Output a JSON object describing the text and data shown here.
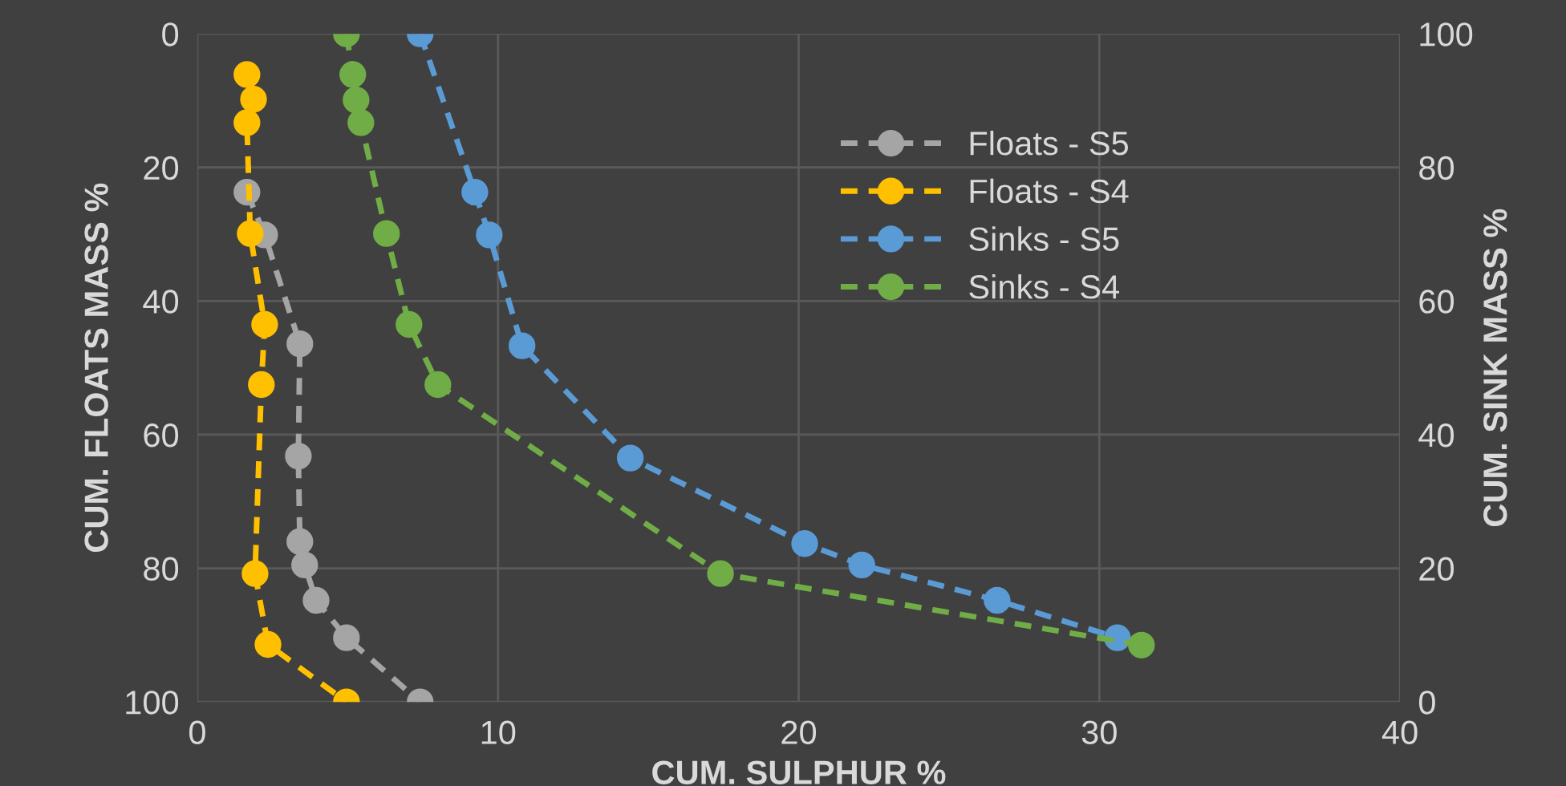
{
  "chart_data": {
    "type": "line",
    "xlabel": "CUM. SULPHUR %",
    "ylabel": "CUM. FLOATS MASS %",
    "y2label": "CUM. SINK MASS %",
    "xlim": [
      0,
      40
    ],
    "xticks": [
      0,
      10,
      20,
      30,
      40
    ],
    "ylim": [
      100,
      0
    ],
    "yticks": [
      0,
      20,
      40,
      60,
      80,
      100
    ],
    "y2lim": [
      0,
      100
    ],
    "y2ticks": [
      0,
      20,
      40,
      60,
      80,
      100
    ],
    "grid": true,
    "legend": "top right",
    "marker": "circle",
    "line_style": "dashed",
    "series": [
      {
        "name": "Floats - S5",
        "color": "#a5a5a5",
        "x": [
          1.65,
          2.24,
          3.41,
          3.36,
          3.41,
          3.57,
          3.95,
          4.96,
          7.41
        ],
        "values": [
          23.7,
          30.1,
          46.4,
          63.2,
          76,
          79.5,
          84.8,
          90.4,
          100
        ]
      },
      {
        "name": "Floats - S4",
        "color": "#ffc000",
        "x": [
          1.65,
          1.87,
          1.65,
          1.76,
          2.24,
          2.13,
          1.92,
          2.35,
          4.96
        ],
        "values": [
          6.1,
          9.8,
          13.3,
          29.9,
          43.5,
          52.5,
          80.8,
          91.4,
          100
        ]
      },
      {
        "name": "Sinks - S5",
        "color": "#5b9bd5",
        "axis": "y2",
        "x": [
          7.41,
          9.23,
          9.71,
          10.8,
          14.4,
          20.2,
          22.1,
          26.6,
          30.6
        ],
        "values": [
          100,
          76.3,
          69.9,
          53.3,
          36.5,
          23.7,
          20.5,
          15.2,
          9.6
        ]
      },
      {
        "name": "Sinks - S4",
        "color": "#70ad47",
        "axis": "y2",
        "x": [
          4.96,
          5.17,
          5.28,
          5.44,
          6.29,
          7.04,
          8.0,
          17.4,
          31.4
        ],
        "values": [
          100,
          93.9,
          90.1,
          86.7,
          70.1,
          56.5,
          47.5,
          19.2,
          8.5
        ]
      }
    ]
  }
}
